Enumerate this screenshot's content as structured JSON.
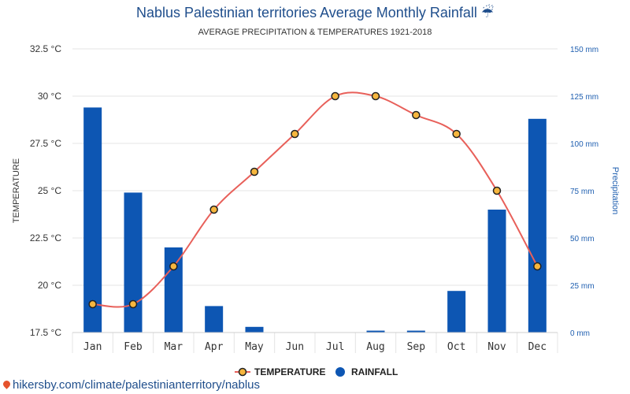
{
  "header": {
    "title": "Nablus Palestinian territories Average Monthly Rainfall",
    "title_icon": "umbrella-rain-icon",
    "subtitle": "AVERAGE PRECIPITATION & TEMPERATURES 1921-2018"
  },
  "footer": {
    "link_text": "hikersby.com/climate/palestinianterritory/nablus",
    "icon": "location-pin-icon"
  },
  "chart_data": {
    "type": "bar",
    "categories": [
      "Jan",
      "Feb",
      "Mar",
      "Apr",
      "May",
      "Jun",
      "Jul",
      "Aug",
      "Sep",
      "Oct",
      "Nov",
      "Dec"
    ],
    "series": [
      {
        "name": "RAINFALL",
        "type": "bar",
        "axis": "right",
        "unit": "mm",
        "color": "#0d56b3",
        "values": [
          119,
          74,
          45,
          14,
          3,
          0,
          0,
          1,
          1,
          22,
          65,
          113
        ]
      },
      {
        "name": "TEMPERATURE",
        "type": "line",
        "axis": "left",
        "unit": "°C",
        "color": "#e8605a",
        "marker_fill": "#f6b63e",
        "values": [
          19,
          19,
          21,
          24,
          26,
          28,
          30,
          30,
          29,
          28,
          25,
          21
        ]
      }
    ],
    "y_left": {
      "label": "TEMPERATURE",
      "ylim": [
        17.5,
        32.5
      ],
      "ticks": [
        17.5,
        20,
        22.5,
        25,
        27.5,
        30,
        32.5
      ],
      "tick_labels": [
        "17.5 °C",
        "20 °C",
        "22.5 °C",
        "25 °C",
        "27.5 °C",
        "30 °C",
        "32.5 °C"
      ]
    },
    "y_right": {
      "label": "Precipitation",
      "ylim": [
        0,
        150
      ],
      "ticks": [
        0,
        25,
        50,
        75,
        100,
        125,
        150
      ],
      "tick_labels": [
        "0 mm",
        "25 mm",
        "50 mm",
        "75 mm",
        "100 mm",
        "125 mm",
        "150 mm"
      ]
    },
    "grid": true,
    "legend": {
      "position": "bottom-center",
      "entries": [
        "TEMPERATURE",
        "RAINFALL"
      ]
    }
  }
}
